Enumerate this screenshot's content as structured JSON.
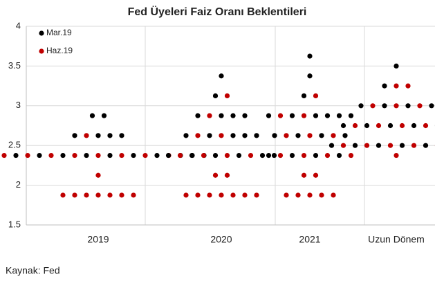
{
  "chart_data": {
    "type": "dot",
    "title": "Fed Üyeleri Faiz Oranı Beklentileri",
    "categories": [
      "2019",
      "2020",
      "2021",
      "Uzun Dönem"
    ],
    "series": [
      {
        "name": "Mar.19",
        "color": "#000000",
        "values": [
          [
            2.375,
            2.375,
            2.375,
            2.375,
            2.375,
            2.375,
            2.375,
            2.375,
            2.375,
            2.375,
            2.375,
            2.625,
            2.625,
            2.625,
            2.625,
            2.875,
            2.875
          ],
          [
            2.375,
            2.375,
            2.375,
            2.375,
            2.375,
            2.375,
            2.625,
            2.625,
            2.625,
            2.625,
            2.625,
            2.875,
            2.875,
            2.875,
            2.875,
            3.125,
            3.375
          ],
          [
            2.375,
            2.375,
            2.375,
            2.375,
            2.625,
            2.625,
            2.625,
            2.625,
            2.875,
            2.875,
            2.875,
            2.875,
            2.875,
            2.875,
            3.125,
            3.375,
            3.625
          ],
          [
            2.5,
            2.5,
            2.5,
            2.5,
            2.5,
            2.75,
            2.75,
            2.75,
            2.75,
            2.75,
            2.75,
            3.0,
            3.0,
            3.0,
            3.0,
            3.25,
            3.5
          ]
        ]
      },
      {
        "name": "Haz.19",
        "color": "#c00000",
        "values": [
          [
            1.875,
            1.875,
            1.875,
            1.875,
            1.875,
            1.875,
            1.875,
            2.125,
            2.375,
            2.375,
            2.375,
            2.375,
            2.375,
            2.375,
            2.375,
            2.375,
            2.625
          ],
          [
            1.875,
            1.875,
            1.875,
            1.875,
            1.875,
            1.875,
            1.875,
            2.125,
            2.125,
            2.375,
            2.375,
            2.375,
            2.375,
            2.625,
            2.625,
            2.875,
            3.125
          ],
          [
            1.875,
            1.875,
            1.875,
            1.875,
            1.875,
            2.125,
            2.125,
            2.375,
            2.375,
            2.375,
            2.375,
            2.625,
            2.625,
            2.625,
            2.875,
            2.875,
            3.125
          ],
          [
            2.375,
            2.5,
            2.5,
            2.5,
            2.5,
            2.5,
            2.5,
            2.5,
            2.75,
            2.75,
            2.75,
            2.75,
            3.0,
            3.0,
            3.0,
            3.25,
            3.25
          ]
        ]
      }
    ],
    "ylim": [
      1.5,
      4
    ],
    "yticks": [
      1.5,
      2,
      2.5,
      3,
      3.5,
      4
    ],
    "grid": true,
    "legend": "upper-left",
    "source": "Kaynak: Fed"
  }
}
